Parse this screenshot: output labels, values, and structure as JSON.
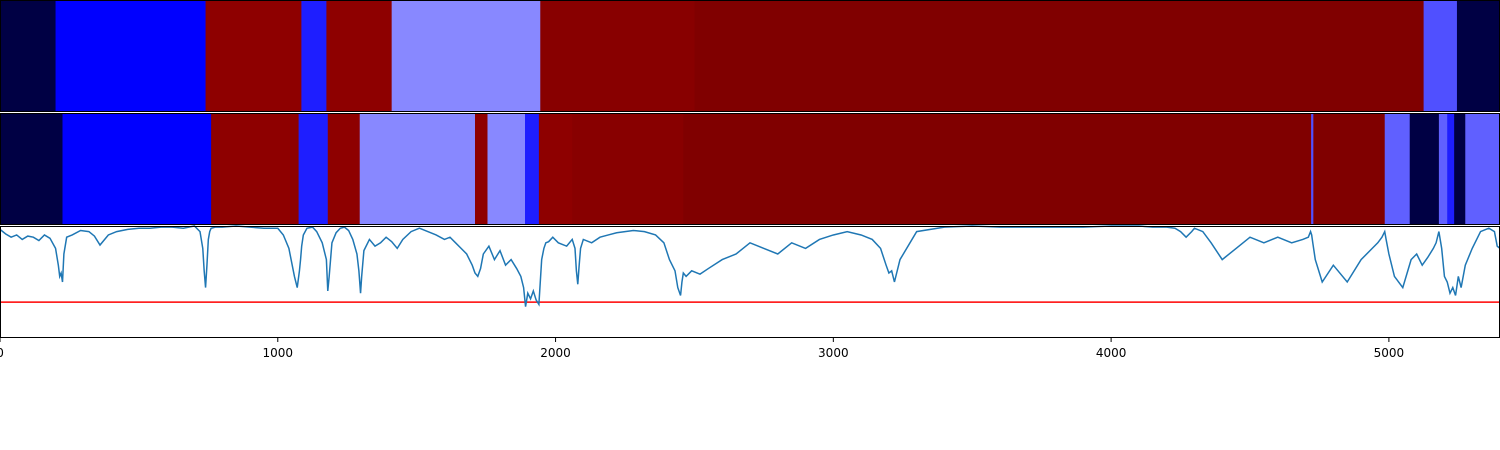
{
  "chart_data": {
    "type": "heatmap",
    "xlim": [
      0,
      5400
    ],
    "x_ticks": [
      0,
      1000,
      2000,
      3000,
      4000,
      5000
    ],
    "x_tick_labels": [
      "0",
      "1000",
      "2000",
      "3000",
      "4000",
      "5000"
    ],
    "grid": false,
    "segment_rows": [
      {
        "segments": [
          {
            "start": 0,
            "end": 200,
            "color": "#000044"
          },
          {
            "start": 200,
            "end": 740,
            "color": "#0000ff"
          },
          {
            "start": 740,
            "end": 1085,
            "color": "#8e0000"
          },
          {
            "start": 1085,
            "end": 1175,
            "color": "#1e1eff"
          },
          {
            "start": 1175,
            "end": 1410,
            "color": "#8e0000"
          },
          {
            "start": 1410,
            "end": 1945,
            "color": "#8888ff"
          },
          {
            "start": 1945,
            "end": 2500,
            "color": "#880000"
          },
          {
            "start": 2500,
            "end": 5125,
            "color": "#800000"
          },
          {
            "start": 5125,
            "end": 5245,
            "color": "#5050ff"
          },
          {
            "start": 5245,
            "end": 5400,
            "color": "#000044"
          }
        ]
      },
      {
        "segments": [
          {
            "start": 0,
            "end": 225,
            "color": "#000044"
          },
          {
            "start": 225,
            "end": 760,
            "color": "#0000ff"
          },
          {
            "start": 760,
            "end": 1075,
            "color": "#8e0000"
          },
          {
            "start": 1075,
            "end": 1180,
            "color": "#1e1eff"
          },
          {
            "start": 1180,
            "end": 1295,
            "color": "#8e0000"
          },
          {
            "start": 1295,
            "end": 1710,
            "color": "#8888ff"
          },
          {
            "start": 1710,
            "end": 1755,
            "color": "#8e0000"
          },
          {
            "start": 1755,
            "end": 1890,
            "color": "#8888ff"
          },
          {
            "start": 1890,
            "end": 1940,
            "color": "#1e1eff"
          },
          {
            "start": 1940,
            "end": 2060,
            "color": "#8e0000"
          },
          {
            "start": 2060,
            "end": 2460,
            "color": "#880000"
          },
          {
            "start": 2460,
            "end": 4720,
            "color": "#800000"
          },
          {
            "start": 4720,
            "end": 4728,
            "color": "#5050ff"
          },
          {
            "start": 4728,
            "end": 4985,
            "color": "#800000"
          },
          {
            "start": 4985,
            "end": 5075,
            "color": "#6060ff"
          },
          {
            "start": 5075,
            "end": 5180,
            "color": "#000044"
          },
          {
            "start": 5180,
            "end": 5210,
            "color": "#6060ff"
          },
          {
            "start": 5210,
            "end": 5235,
            "color": "#1e1eff"
          },
          {
            "start": 5235,
            "end": 5275,
            "color": "#000044"
          },
          {
            "start": 5275,
            "end": 5400,
            "color": "#6060ff"
          }
        ]
      }
    ],
    "line_panel": {
      "ylim": [
        -1.0,
        0.0
      ],
      "threshold": -0.68,
      "threshold_color": "#ff0000",
      "series_color": "#1f77b4",
      "x": [
        0,
        20,
        40,
        60,
        80,
        100,
        120,
        140,
        160,
        180,
        200,
        210,
        215,
        220,
        225,
        230,
        240,
        260,
        290,
        320,
        340,
        360,
        390,
        420,
        460,
        500,
        540,
        580,
        620,
        660,
        700,
        720,
        730,
        735,
        740,
        745,
        750,
        755,
        760,
        775,
        800,
        850,
        900,
        950,
        1000,
        1020,
        1040,
        1060,
        1070,
        1078,
        1082,
        1086,
        1092,
        1105,
        1125,
        1140,
        1160,
        1175,
        1180,
        1185,
        1195,
        1210,
        1225,
        1240,
        1255,
        1270,
        1285,
        1292,
        1298,
        1302,
        1310,
        1330,
        1350,
        1370,
        1390,
        1410,
        1430,
        1450,
        1480,
        1510,
        1540,
        1570,
        1600,
        1620,
        1640,
        1660,
        1680,
        1700,
        1710,
        1720,
        1730,
        1740,
        1760,
        1780,
        1800,
        1820,
        1840,
        1860,
        1875,
        1885,
        1892,
        1900,
        1910,
        1920,
        1930,
        1940,
        1950,
        1958,
        1965,
        1975,
        1990,
        2010,
        2040,
        2060,
        2070,
        2075,
        2080,
        2085,
        2090,
        2100,
        2130,
        2160,
        2190,
        2220,
        2250,
        2280,
        2320,
        2360,
        2390,
        2410,
        2430,
        2440,
        2450,
        2455,
        2460,
        2470,
        2490,
        2520,
        2550,
        2600,
        2650,
        2700,
        2750,
        2800,
        2850,
        2900,
        2950,
        3000,
        3050,
        3100,
        3140,
        3170,
        3190,
        3200,
        3210,
        3220,
        3240,
        3300,
        3400,
        3500,
        3600,
        3700,
        3800,
        3900,
        4000,
        4050,
        4100,
        4150,
        4200,
        4230,
        4250,
        4270,
        4290,
        4300,
        4330,
        4360,
        4400,
        4450,
        4500,
        4550,
        4600,
        4650,
        4690,
        4710,
        4718,
        4722,
        4726,
        4735,
        4760,
        4800,
        4850,
        4900,
        4940,
        4960,
        4975,
        4985,
        4990,
        5000,
        5020,
        5050,
        5080,
        5100,
        5120,
        5140,
        5160,
        5170,
        5180,
        5190,
        5200,
        5210,
        5220,
        5230,
        5240,
        5250,
        5260,
        5275,
        5300,
        5330,
        5360,
        5380,
        5390,
        5400
      ],
      "y": [
        -0.03,
        -0.07,
        -0.1,
        -0.08,
        -0.12,
        -0.09,
        -0.1,
        -0.13,
        -0.08,
        -0.11,
        -0.2,
        -0.35,
        -0.45,
        -0.42,
        -0.5,
        -0.25,
        -0.1,
        -0.08,
        -0.04,
        -0.05,
        -0.09,
        -0.17,
        -0.08,
        -0.05,
        -0.03,
        -0.02,
        -0.02,
        -0.01,
        -0.01,
        -0.02,
        0.0,
        -0.05,
        -0.2,
        -0.4,
        -0.55,
        -0.35,
        -0.12,
        -0.05,
        -0.02,
        -0.01,
        -0.01,
        0.0,
        -0.01,
        -0.02,
        -0.02,
        -0.08,
        -0.2,
        -0.45,
        -0.55,
        -0.4,
        -0.3,
        -0.18,
        -0.08,
        -0.02,
        -0.01,
        -0.05,
        -0.15,
        -0.3,
        -0.58,
        -0.45,
        -0.15,
        -0.06,
        -0.02,
        -0.01,
        -0.04,
        -0.12,
        -0.25,
        -0.4,
        -0.6,
        -0.45,
        -0.22,
        -0.12,
        -0.18,
        -0.15,
        -0.1,
        -0.14,
        -0.2,
        -0.12,
        -0.05,
        -0.02,
        -0.05,
        -0.08,
        -0.12,
        -0.1,
        -0.15,
        -0.2,
        -0.25,
        -0.35,
        -0.42,
        -0.45,
        -0.38,
        -0.25,
        -0.18,
        -0.3,
        -0.22,
        -0.35,
        -0.3,
        -0.38,
        -0.45,
        -0.55,
        -0.72,
        -0.6,
        -0.65,
        -0.58,
        -0.66,
        -0.7,
        -0.3,
        -0.2,
        -0.15,
        -0.14,
        -0.1,
        -0.15,
        -0.18,
        -0.12,
        -0.2,
        -0.4,
        -0.52,
        -0.35,
        -0.2,
        -0.12,
        -0.15,
        -0.1,
        -0.08,
        -0.06,
        -0.05,
        -0.04,
        -0.05,
        -0.08,
        -0.15,
        -0.3,
        -0.4,
        -0.55,
        -0.62,
        -0.5,
        -0.42,
        -0.45,
        -0.4,
        -0.43,
        -0.38,
        -0.3,
        -0.25,
        -0.15,
        -0.2,
        -0.25,
        -0.15,
        -0.2,
        -0.12,
        -0.08,
        -0.05,
        -0.08,
        -0.12,
        -0.2,
        -0.35,
        -0.42,
        -0.4,
        -0.5,
        -0.3,
        -0.05,
        -0.01,
        0.0,
        -0.01,
        -0.01,
        -0.01,
        -0.01,
        0.0,
        0.0,
        0.0,
        -0.01,
        -0.01,
        -0.02,
        -0.05,
        -0.1,
        -0.05,
        -0.02,
        -0.05,
        -0.15,
        -0.3,
        -0.2,
        -0.1,
        -0.15,
        -0.1,
        -0.15,
        -0.12,
        -0.1,
        -0.05,
        -0.08,
        -0.15,
        -0.3,
        -0.5,
        -0.35,
        -0.5,
        -0.3,
        -0.2,
        -0.15,
        -0.1,
        -0.05,
        -0.12,
        -0.25,
        -0.45,
        -0.55,
        -0.3,
        -0.25,
        -0.35,
        -0.28,
        -0.2,
        -0.15,
        -0.05,
        -0.2,
        -0.45,
        -0.5,
        -0.6,
        -0.55,
        -0.62,
        -0.45,
        -0.55,
        -0.35,
        -0.2,
        -0.05,
        -0.02,
        -0.05,
        -0.18,
        -0.2
      ]
    }
  }
}
